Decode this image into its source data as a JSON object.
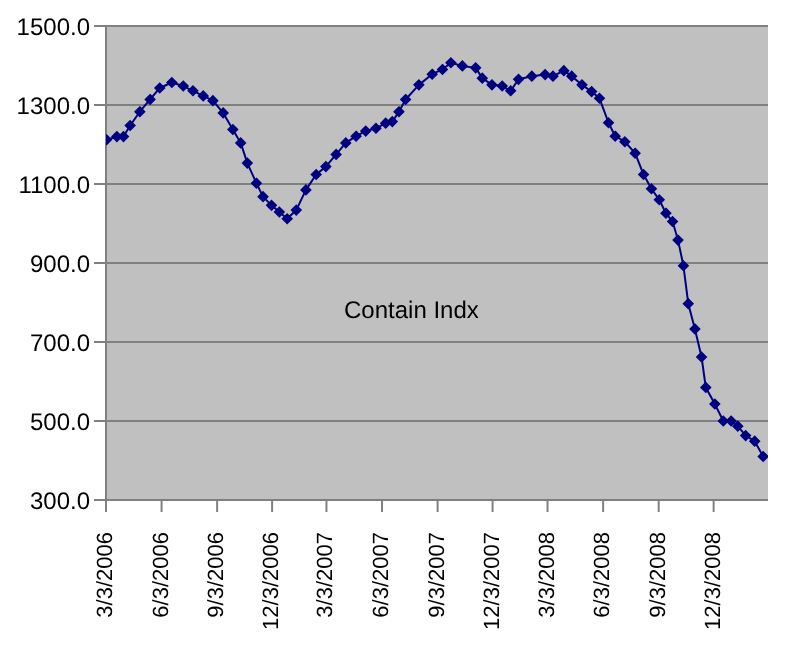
{
  "chart_data": {
    "type": "line",
    "annotations": [
      "Contain Indx"
    ],
    "x": [
      "2006-03-04",
      "2006-03-21",
      "2006-04-01",
      "2006-04-12",
      "2006-04-28",
      "2006-05-15",
      "2006-05-31",
      "2006-06-20",
      "2006-07-09",
      "2006-07-25",
      "2006-08-11",
      "2006-08-27",
      "2006-09-13",
      "2006-09-29",
      "2006-10-12",
      "2006-10-23",
      "2006-11-07",
      "2006-11-18",
      "2006-12-02",
      "2006-12-15",
      "2006-12-28",
      "2007-01-12",
      "2007-01-28",
      "2007-02-14",
      "2007-03-02",
      "2007-03-19",
      "2007-04-04",
      "2007-04-21",
      "2007-05-07",
      "2007-05-24",
      "2007-06-09",
      "2007-06-20",
      "2007-07-01",
      "2007-07-12",
      "2007-08-03",
      "2007-08-25",
      "2007-09-11",
      "2007-09-25",
      "2007-10-14",
      "2007-11-05",
      "2007-11-16",
      "2007-12-02",
      "2007-12-19",
      "2008-01-02",
      "2008-01-15",
      "2008-02-06",
      "2008-02-28",
      "2008-03-12",
      "2008-03-30",
      "2008-04-12",
      "2008-04-29",
      "2008-05-15",
      "2008-05-28",
      "2008-06-12",
      "2008-06-23",
      "2008-07-09",
      "2008-07-26",
      "2008-08-09",
      "2008-08-22",
      "2008-09-04",
      "2008-09-15",
      "2008-09-26",
      "2008-10-05",
      "2008-10-14",
      "2008-10-22",
      "2008-11-02",
      "2008-11-13",
      "2008-11-20",
      "2008-12-05",
      "2008-12-19",
      "2009-01-01",
      "2009-01-12",
      "2009-01-25",
      "2009-02-09",
      "2009-02-23"
    ],
    "series": [
      {
        "color": "#000080",
        "values": [
          1212,
          1220,
          1220,
          1248,
          1283,
          1314,
          1343,
          1357,
          1348,
          1336,
          1323,
          1311,
          1280,
          1238,
          1204,
          1153,
          1102,
          1068,
          1046,
          1029,
          1012,
          1034,
          1085,
          1124,
          1144,
          1175,
          1204,
          1221,
          1234,
          1241,
          1254,
          1258,
          1283,
          1314,
          1351,
          1378,
          1390,
          1407,
          1399,
          1394,
          1368,
          1351,
          1348,
          1336,
          1365,
          1373,
          1377,
          1373,
          1387,
          1373,
          1351,
          1334,
          1317,
          1255,
          1221,
          1207,
          1178,
          1124,
          1088,
          1060,
          1026,
          1005,
          958,
          893,
          797,
          733,
          662,
          585,
          543,
          500,
          500,
          487,
          463,
          449,
          410
        ]
      }
    ],
    "xlim": [
      "2006-03-03",
      "2009-03-03"
    ],
    "xticks": [
      {
        "value": "2006-03-03",
        "label": "3/3/2006"
      },
      {
        "value": "2006-06-03",
        "label": "6/3/2006"
      },
      {
        "value": "2006-09-03",
        "label": "9/3/2006"
      },
      {
        "value": "2006-12-03",
        "label": "12/3/2006"
      },
      {
        "value": "2007-03-03",
        "label": "3/3/2007"
      },
      {
        "value": "2007-06-03",
        "label": "6/3/2007"
      },
      {
        "value": "2007-09-03",
        "label": "9/3/2007"
      },
      {
        "value": "2007-12-03",
        "label": "12/3/2007"
      },
      {
        "value": "2008-03-03",
        "label": "3/3/2008"
      },
      {
        "value": "2008-06-03",
        "label": "6/3/2008"
      },
      {
        "value": "2008-09-03",
        "label": "9/3/2008"
      },
      {
        "value": "2008-12-03",
        "label": "12/3/2008"
      }
    ],
    "ylim": [
      300,
      1500
    ],
    "yticks": [
      {
        "value": 300,
        "label": "300.0"
      },
      {
        "value": 500,
        "label": "500.0"
      },
      {
        "value": 700,
        "label": "700.0"
      },
      {
        "value": 900,
        "label": "900.0"
      },
      {
        "value": 1100,
        "label": "1100.0"
      },
      {
        "value": 1300,
        "label": "1300.0"
      },
      {
        "value": 1500,
        "label": "1500.0"
      }
    ],
    "grid": "y",
    "marker": "diamond",
    "line_style": "solid"
  }
}
